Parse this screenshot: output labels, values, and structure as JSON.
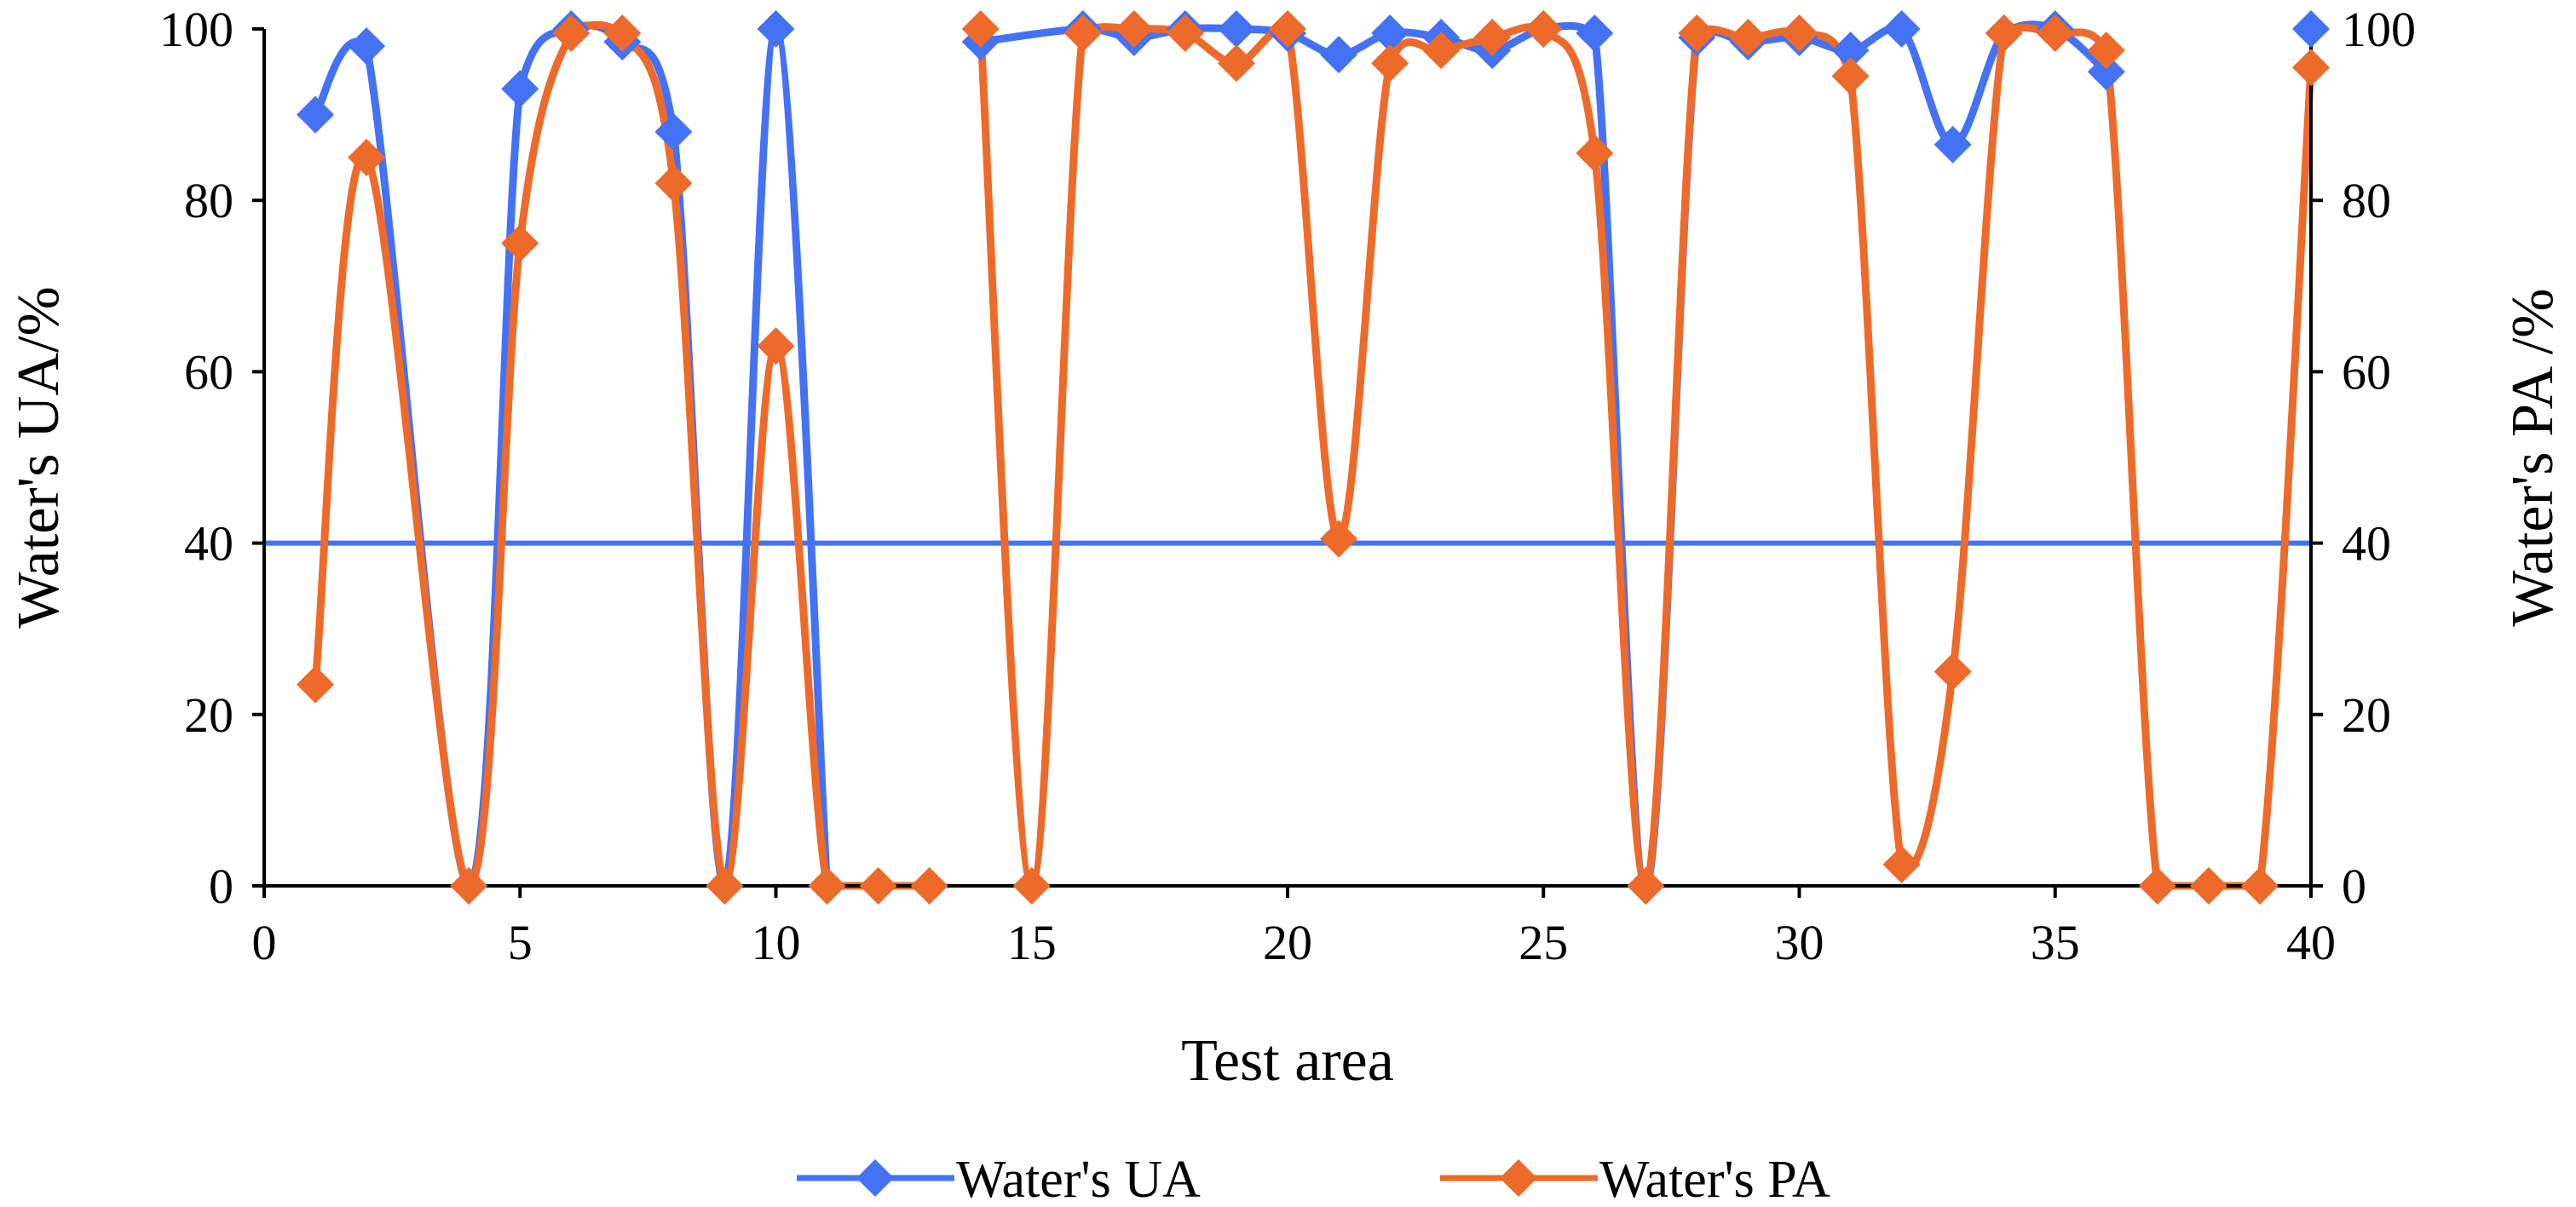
{
  "chart_data": {
    "type": "line",
    "title": "",
    "xlabel": "Test area",
    "ylabel": "Water's UA/%",
    "y2label": "Water's PA /%",
    "xlim": [
      0,
      40
    ],
    "ylim": [
      0,
      100
    ],
    "y2lim": [
      0,
      100
    ],
    "xticks": [
      0,
      5,
      10,
      15,
      20,
      25,
      30,
      35,
      40
    ],
    "yticks": [
      0,
      20,
      40,
      60,
      80,
      100
    ],
    "y2ticks": [
      0,
      20,
      40,
      60,
      80,
      100
    ],
    "grid": false,
    "legend_position": "bottom-center",
    "reference_line": {
      "name": "threshold",
      "y": 40,
      "color": "#4472F4"
    },
    "series": [
      {
        "name": "Water's UA",
        "axis": "left",
        "color": "#4472F4",
        "marker": "diamond",
        "segments": [
          [
            [
              1,
              90
            ],
            [
              2,
              98
            ],
            [
              4,
              0
            ],
            [
              5,
              93
            ],
            [
              6,
              100
            ],
            [
              7,
              98.5
            ],
            [
              8,
              88
            ],
            [
              9,
              0
            ],
            [
              10,
              100
            ],
            [
              11,
              0
            ]
          ],
          [
            [
              14,
              98.5
            ],
            [
              16,
              100
            ],
            [
              17,
              99
            ],
            [
              18,
              100
            ],
            [
              19,
              100
            ],
            [
              20,
              99.5
            ],
            [
              21,
              97
            ],
            [
              22,
              99.5
            ],
            [
              23,
              99
            ],
            [
              24,
              97.5
            ],
            [
              25,
              100
            ],
            [
              26,
              99.5
            ],
            [
              27,
              0
            ],
            [
              28,
              99
            ],
            [
              29,
              98.5
            ],
            [
              30,
              99
            ],
            [
              31,
              97.5
            ],
            [
              32,
              100
            ],
            [
              33,
              86.5
            ],
            [
              34,
              99.5
            ],
            [
              35,
              100
            ],
            [
              36,
              95
            ]
          ],
          [
            [
              40,
              100
            ]
          ]
        ]
      },
      {
        "name": "Water's PA",
        "axis": "right",
        "color": "#ED6A2A",
        "marker": "diamond",
        "segments": [
          [
            [
              1,
              23.5
            ],
            [
              2,
              85
            ],
            [
              4,
              0
            ],
            [
              5,
              75
            ],
            [
              6,
              99.5
            ],
            [
              7,
              99.5
            ],
            [
              8,
              82
            ],
            [
              9,
              0
            ],
            [
              10,
              63
            ],
            [
              11,
              0
            ],
            [
              12,
              0
            ],
            [
              13,
              0
            ]
          ],
          [
            [
              14,
              100
            ],
            [
              15,
              0
            ],
            [
              16,
              99.5
            ],
            [
              17,
              100
            ],
            [
              18,
              99.5
            ],
            [
              19,
              96
            ],
            [
              20,
              100
            ],
            [
              21,
              40.5
            ],
            [
              22,
              96
            ],
            [
              23,
              97.5
            ],
            [
              24,
              99
            ],
            [
              25,
              100
            ],
            [
              26,
              85.5
            ],
            [
              27,
              0
            ],
            [
              28,
              99.5
            ],
            [
              29,
              99
            ],
            [
              30,
              99.5
            ],
            [
              31,
              94.5
            ],
            [
              32,
              2.5
            ],
            [
              33,
              25
            ],
            [
              34,
              99.5
            ],
            [
              35,
              99.5
            ],
            [
              36,
              97.5
            ],
            [
              37,
              0
            ],
            [
              38,
              0
            ],
            [
              39,
              0
            ],
            [
              40,
              95.5
            ]
          ]
        ]
      }
    ]
  }
}
